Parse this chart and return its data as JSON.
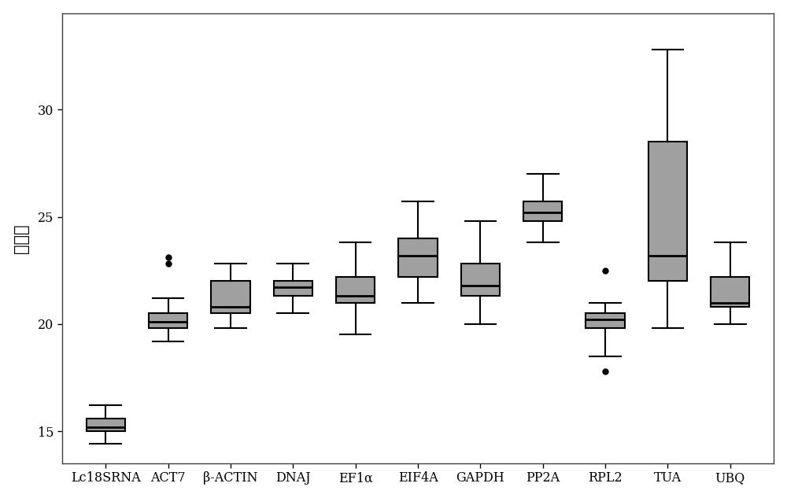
{
  "categories": [
    "Lc18SRNA",
    "ACT7",
    "β-ACTIN",
    "DNAJ",
    "EF1α",
    "EIF4A",
    "GAPDH",
    "PP2A",
    "RPL2",
    "TUA",
    "UBQ"
  ],
  "box_data": [
    {
      "label": "Lc18SRNA",
      "whislo": 14.4,
      "q1": 15.0,
      "med": 15.2,
      "q3": 15.6,
      "whishi": 16.2,
      "fliers": []
    },
    {
      "label": "ACT7",
      "whislo": 19.2,
      "q1": 19.8,
      "med": 20.1,
      "q3": 20.5,
      "whishi": 21.2,
      "fliers": [
        22.8,
        23.1
      ]
    },
    {
      "label": "β-ACTIN",
      "whislo": 19.8,
      "q1": 20.5,
      "med": 20.8,
      "q3": 22.0,
      "whishi": 22.8,
      "fliers": []
    },
    {
      "label": "DNAJ",
      "whislo": 20.5,
      "q1": 21.3,
      "med": 21.7,
      "q3": 22.0,
      "whishi": 22.8,
      "fliers": []
    },
    {
      "label": "EF1α",
      "whislo": 19.5,
      "q1": 21.0,
      "med": 21.3,
      "q3": 22.2,
      "whishi": 23.8,
      "fliers": []
    },
    {
      "label": "EIF4A",
      "whislo": 21.0,
      "q1": 22.2,
      "med": 23.2,
      "q3": 24.0,
      "whishi": 25.7,
      "fliers": []
    },
    {
      "label": "GAPDH",
      "whislo": 20.0,
      "q1": 21.3,
      "med": 21.8,
      "q3": 22.8,
      "whishi": 24.8,
      "fliers": []
    },
    {
      "label": "PP2A",
      "whislo": 23.8,
      "q1": 24.8,
      "med": 25.2,
      "q3": 25.7,
      "whishi": 27.0,
      "fliers": []
    },
    {
      "label": "RPL2",
      "whislo": 18.5,
      "q1": 19.8,
      "med": 20.2,
      "q3": 20.5,
      "whishi": 21.0,
      "fliers": [
        17.8,
        22.5
      ]
    },
    {
      "label": "TUA",
      "whislo": 19.8,
      "q1": 22.0,
      "med": 23.2,
      "q3": 28.5,
      "whishi": 32.8,
      "fliers": []
    },
    {
      "label": "UBQ",
      "whislo": 20.0,
      "q1": 20.8,
      "med": 21.0,
      "q3": 22.2,
      "whishi": 23.8,
      "fliers": []
    }
  ],
  "ylabel": "循环数",
  "ylim": [
    13.5,
    34.5
  ],
  "yticks": [
    15,
    20,
    25,
    30
  ],
  "box_color": "#a0a0a0",
  "median_color": "#000000",
  "whisker_color": "#000000",
  "flier_color": "#000000",
  "background_color": "#ffffff",
  "ylabel_fontsize": 15,
  "tick_fontsize": 11.5
}
